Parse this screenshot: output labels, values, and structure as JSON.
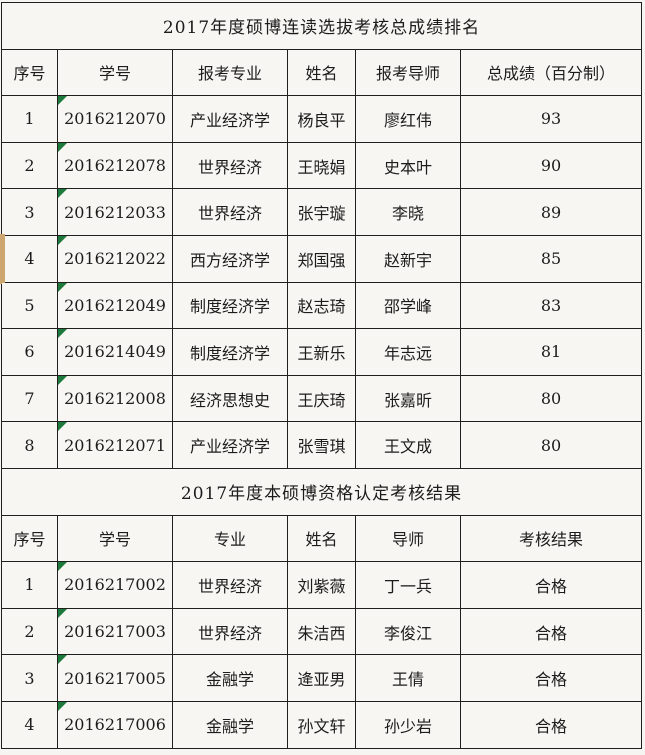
{
  "palette": {
    "page_background": "#f7f5f1",
    "cell_background": "#f7f6f2",
    "border_color": "#1f1f1f",
    "text_color": "#1c1c1c",
    "flag_green": "#1e7a3c",
    "row4_left_edge_tan": "#cda56e"
  },
  "icons": {
    "student_id_flag": "green-triangle-icon"
  },
  "table1": {
    "title": "2017年度硕博连读选拔考核总成绩排名",
    "headers": [
      "序号",
      "学号",
      "报考专业",
      "姓名",
      "报考导师",
      "总成绩（百分制）"
    ],
    "rows": [
      {
        "cells": [
          "1",
          "2016212070",
          "产业经济学",
          "杨良平",
          "廖红伟",
          "93"
        ],
        "flag": true
      },
      {
        "cells": [
          "2",
          "2016212078",
          "世界经济",
          "王晓娟",
          "史本叶",
          "90"
        ],
        "flag": true
      },
      {
        "cells": [
          "3",
          "2016212033",
          "世界经济",
          "张宇璇",
          "李晓",
          "89"
        ],
        "flag": true
      },
      {
        "cells": [
          "4",
          "2016212022",
          "西方经济学",
          "郑国强",
          "赵新宇",
          "85"
        ],
        "flag": true,
        "tan_edge": true
      },
      {
        "cells": [
          "5",
          "2016212049",
          "制度经济学",
          "赵志琦",
          "邵学峰",
          "83"
        ],
        "flag": true
      },
      {
        "cells": [
          "6",
          "2016214049",
          "制度经济学",
          "王新乐",
          "年志远",
          "81"
        ],
        "flag": true
      },
      {
        "cells": [
          "7",
          "2016212008",
          "经济思想史",
          "王庆琦",
          "张嘉昕",
          "80"
        ],
        "flag": true
      },
      {
        "cells": [
          "8",
          "2016212071",
          "产业经济学",
          "张雪琪",
          "王文成",
          "80"
        ],
        "flag": true
      }
    ]
  },
  "table2": {
    "title": "2017年度本硕博资格认定考核结果",
    "headers": [
      "序号",
      "学号",
      "专业",
      "姓名",
      "导师",
      "考核结果"
    ],
    "rows": [
      {
        "cells": [
          "1",
          "2016217002",
          "世界经济",
          "刘紫薇",
          "丁一兵",
          "合格"
        ],
        "flag": true
      },
      {
        "cells": [
          "2",
          "2016217003",
          "世界经济",
          "朱洁西",
          "李俊江",
          "合格"
        ],
        "flag": true
      },
      {
        "cells": [
          "3",
          "2016217005",
          "金融学",
          "逄亚男",
          "王倩",
          "合格"
        ],
        "flag": true
      },
      {
        "cells": [
          "4",
          "2016217006",
          "金融学",
          "孙文轩",
          "孙少岩",
          "合格"
        ],
        "flag": true
      }
    ]
  }
}
